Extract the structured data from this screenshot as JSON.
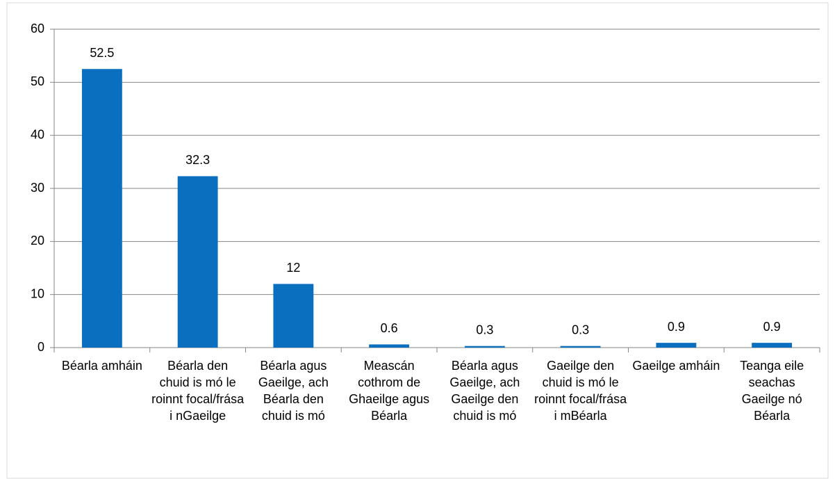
{
  "chart_data": {
    "type": "bar",
    "categories": [
      "Béarla amháin",
      "Béarla den chuid is mó le roinnt focal/frása i nGaeilge",
      "Béarla agus Gaeilge, ach Béarla den chuid is mó",
      "Meascán cothrom de Ghaeilge agus Béarla",
      "Béarla agus Gaeilge, ach Gaeilge den chuid is mó",
      "Gaeilge den chuid is mó le roinnt focal/frása i mBéarla",
      "Gaeilge amháin",
      "Teanga eile seachas Gaeilge nó Béarla"
    ],
    "values": [
      52.5,
      32.3,
      12,
      0.6,
      0.3,
      0.3,
      0.9,
      0.9
    ],
    "color": "#0B6FC0",
    "ylim": [
      0,
      60
    ],
    "yticks": [
      0,
      10,
      20,
      30,
      40,
      50,
      60
    ],
    "grid": true
  }
}
